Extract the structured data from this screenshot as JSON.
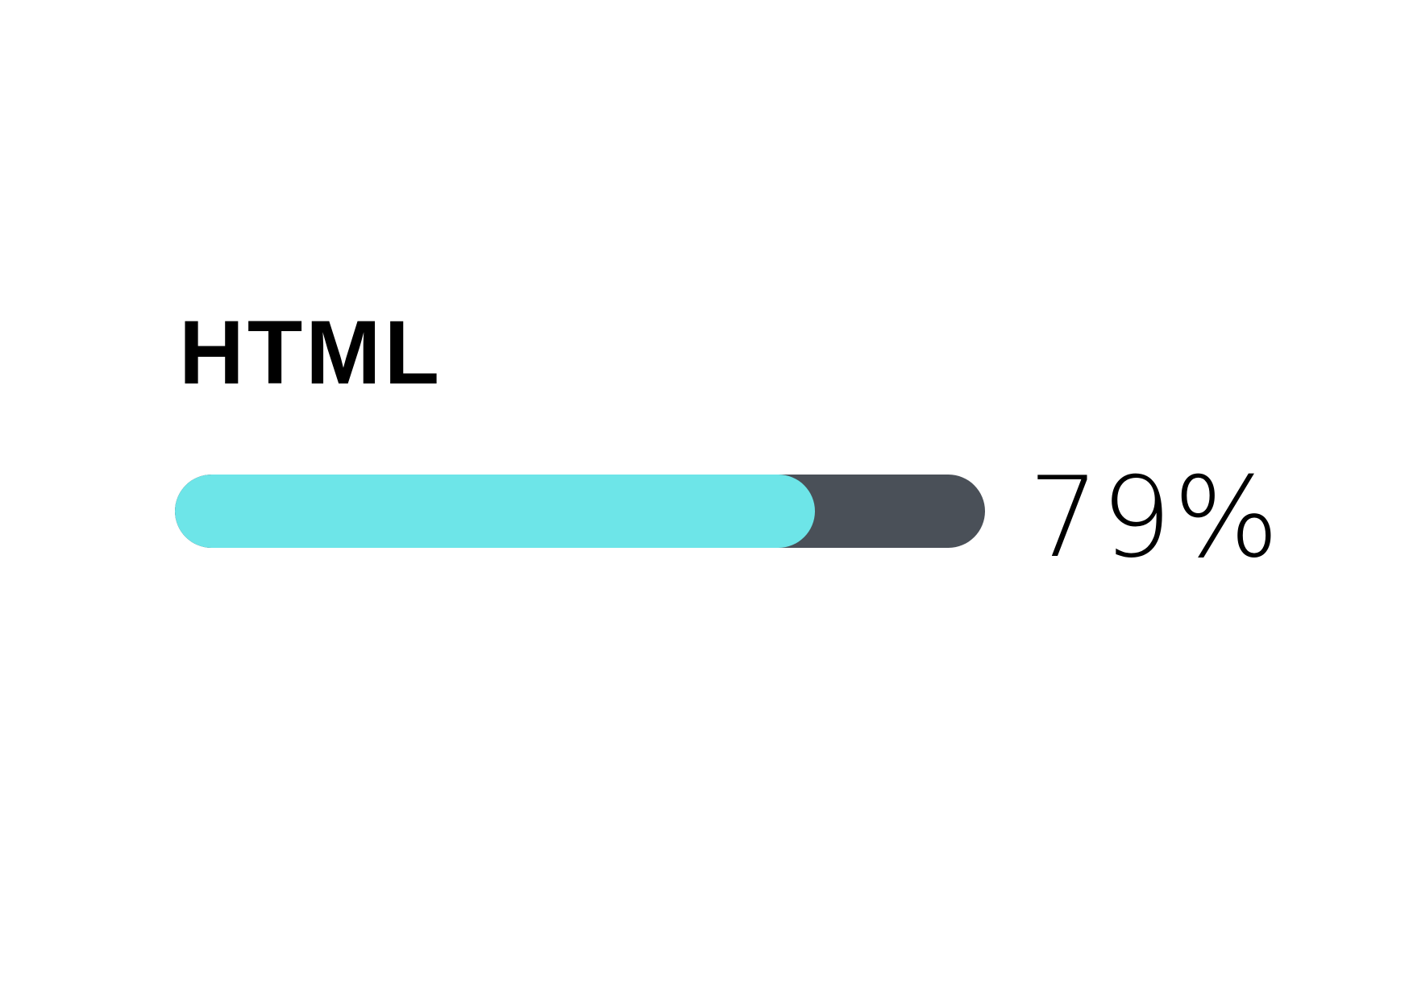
{
  "skill": {
    "label": "HTML",
    "percent_text": "79%",
    "progress_fraction": 0.79
  },
  "colors": {
    "fill": "#6de5e8",
    "track": "#4a5058",
    "text": "#000000",
    "background": "#ffffff"
  }
}
